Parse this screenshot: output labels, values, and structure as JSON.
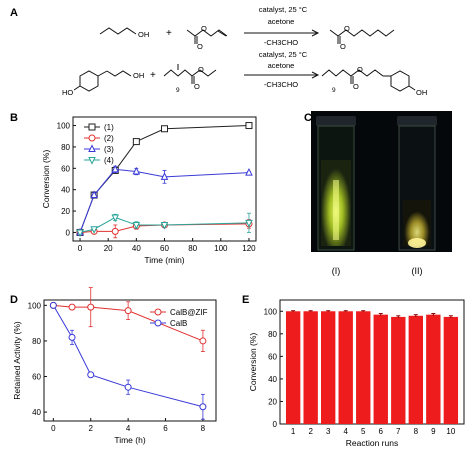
{
  "panels": {
    "A": {
      "label": "A",
      "reaction1": {
        "catalyst": "catalyst, 25 °C",
        "solvent": "acetone",
        "byproduct": "-CH3CHO",
        "oh": "OH",
        "plus": "+"
      },
      "reaction2": {
        "catalyst": "catalyst, 25 °C",
        "solvent": "acetone",
        "byproduct": "-CH3CHO",
        "ho": "HO",
        "oh": "OH",
        "plus": "+",
        "subscript_left": "9",
        "subscript_right": "9"
      }
    },
    "C": {
      "label": "C",
      "vial1_label": "(I)",
      "vial2_label": "(II)"
    }
  },
  "colors": {
    "black": "#222222",
    "red": "#e03030",
    "blue": "#3a3ad8",
    "teal": "#2aa59a",
    "bar_red": "#ee1c1c"
  },
  "chart_data": [
    {
      "label": "B",
      "type": "line",
      "xlabel": "Time (min)",
      "ylabel": "Conversion (%)",
      "xlim": [
        -5,
        125
      ],
      "ylim": [
        -8,
        108
      ],
      "xticks": [
        0,
        20,
        40,
        60,
        80,
        100,
        120
      ],
      "yticks": [
        0,
        20,
        40,
        60,
        80,
        100
      ],
      "legend_position": "top-left",
      "series": [
        {
          "name": "(1)",
          "color": "#222222",
          "marker": "square",
          "x": [
            0,
            10,
            25,
            40,
            60,
            120
          ],
          "y": [
            0,
            35,
            58,
            85,
            97,
            100
          ],
          "err": [
            0,
            1,
            2,
            1,
            1,
            1
          ]
        },
        {
          "name": "(2)",
          "color": "#e03030",
          "marker": "circle",
          "x": [
            0,
            10,
            25,
            40,
            60,
            120
          ],
          "y": [
            0,
            1,
            1,
            6,
            7,
            8
          ],
          "err": [
            0,
            2,
            6,
            3,
            2,
            4
          ]
        },
        {
          "name": "(3)",
          "color": "#3a3ad8",
          "marker": "triangle-up",
          "x": [
            0,
            10,
            25,
            40,
            60,
            120
          ],
          "y": [
            0,
            35,
            59,
            57,
            52,
            56
          ],
          "err": [
            0,
            2,
            3,
            3,
            6,
            1
          ]
        },
        {
          "name": "(4)",
          "color": "#2aa59a",
          "marker": "triangle-down",
          "x": [
            0,
            10,
            25,
            40,
            60,
            120
          ],
          "y": [
            0,
            3,
            14,
            7,
            7,
            9
          ],
          "err": [
            0,
            1,
            3,
            3,
            2,
            9
          ]
        }
      ]
    },
    {
      "label": "D",
      "type": "line",
      "xlabel": "Time (h)",
      "ylabel": "Retained Activity (%)",
      "xlim": [
        -0.5,
        8.7
      ],
      "ylim": [
        35,
        103
      ],
      "xticks": [
        0,
        2,
        4,
        6,
        8
      ],
      "yticks": [
        40,
        60,
        80,
        100
      ],
      "legend_position": "top-right",
      "series": [
        {
          "name": "CalB@ZIF",
          "color": "#e03030",
          "marker": "circle",
          "x": [
            0,
            1,
            2,
            4,
            8
          ],
          "y": [
            100,
            99,
            99,
            97,
            80
          ],
          "err": [
            0,
            1,
            11,
            5,
            6
          ]
        },
        {
          "name": "CalB",
          "color": "#3a3ad8",
          "marker": "circle",
          "x": [
            0,
            1,
            2,
            4,
            8
          ],
          "y": [
            100,
            82,
            61,
            54,
            43
          ],
          "err": [
            0,
            4,
            1,
            4,
            7
          ]
        }
      ]
    },
    {
      "label": "E",
      "type": "bar",
      "xlabel": "Reaction runs",
      "ylabel": "Conversion (%)",
      "ylim": [
        0,
        110
      ],
      "yticks": [
        0,
        20,
        40,
        60,
        80,
        100
      ],
      "categories": [
        "1",
        "2",
        "3",
        "4",
        "5",
        "6",
        "7",
        "8",
        "9",
        "10"
      ],
      "values": [
        100,
        100,
        100,
        100,
        100,
        97,
        95,
        96,
        97,
        95
      ],
      "err": [
        0.5,
        0.5,
        0.5,
        0.5,
        0.5,
        1,
        1,
        1,
        1,
        1
      ],
      "color": "#ee1c1c"
    }
  ]
}
